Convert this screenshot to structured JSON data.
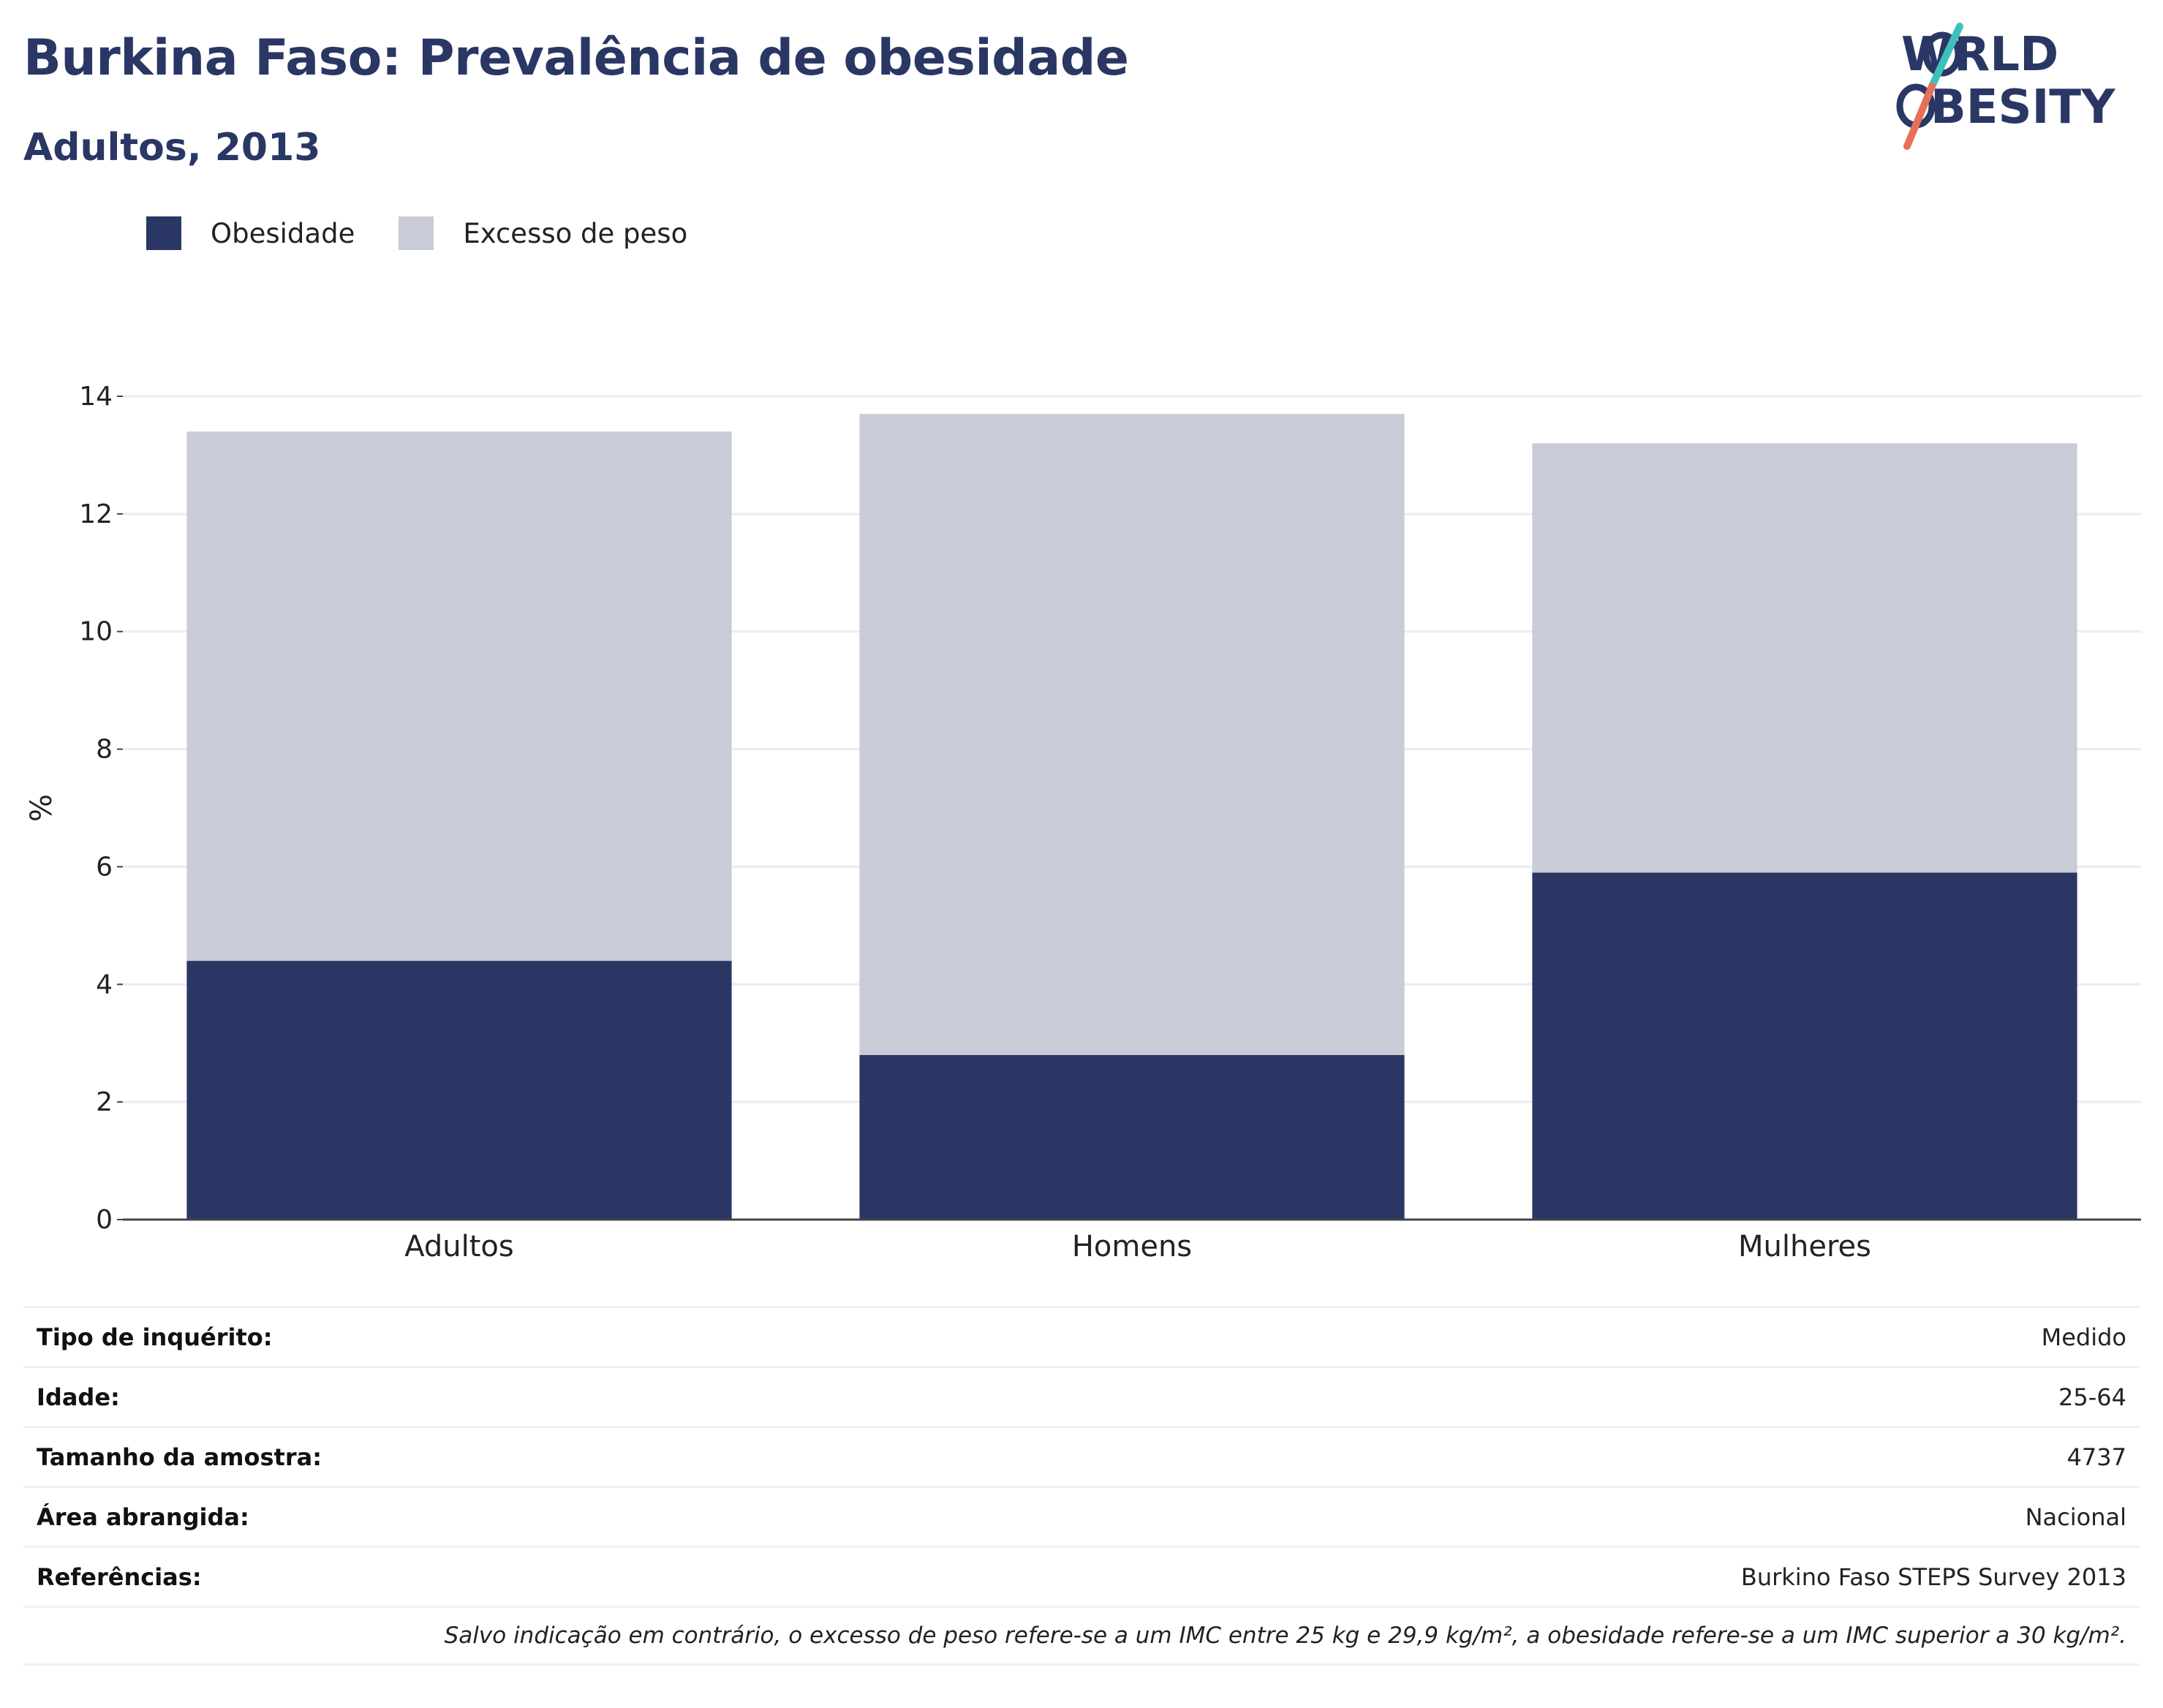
{
  "header": {
    "title": "Burkina Faso: Prevalência de obesidade",
    "subtitle": "Adultos, 2013",
    "logo_text": "WORLD OBESITY"
  },
  "legend": [
    {
      "label": "Obesidade",
      "color": "#2a3764"
    },
    {
      "label": "Excesso de peso",
      "color": "#c9cbd7"
    }
  ],
  "chart_data": {
    "type": "bar",
    "stacked": true,
    "categories": [
      "Adultos",
      "Homens",
      "Mulheres"
    ],
    "series": [
      {
        "name": "Obesidade",
        "values": [
          4.4,
          2.8,
          5.9
        ],
        "color": "#2a3764"
      },
      {
        "name": "Excesso de peso",
        "values": [
          9.0,
          10.9,
          7.3
        ],
        "color": "#c9cbd7"
      }
    ],
    "ylabel": "%",
    "ylim": [
      0,
      14
    ],
    "yticks": [
      "0",
      "2",
      "4",
      "6",
      "8",
      "10",
      "12",
      "14"
    ],
    "grid": true,
    "legend_position": "top-left"
  },
  "info_table": [
    {
      "key": "Tipo de inquérito:",
      "value": "Medido"
    },
    {
      "key": "Idade:",
      "value": "25-64"
    },
    {
      "key": "Tamanho da amostra:",
      "value": "4737"
    },
    {
      "key": "Área abrangida:",
      "value": "Nacional"
    },
    {
      "key": "Referências:",
      "value": "Burkino Faso STEPS Survey 2013"
    }
  ],
  "footnote": "Salvo indicação em contrário, o excesso de peso refere-se a um IMC entre 25 kg e 29,9 kg/m², a obesidade refere-se a um IMC superior a 30 kg/m²."
}
